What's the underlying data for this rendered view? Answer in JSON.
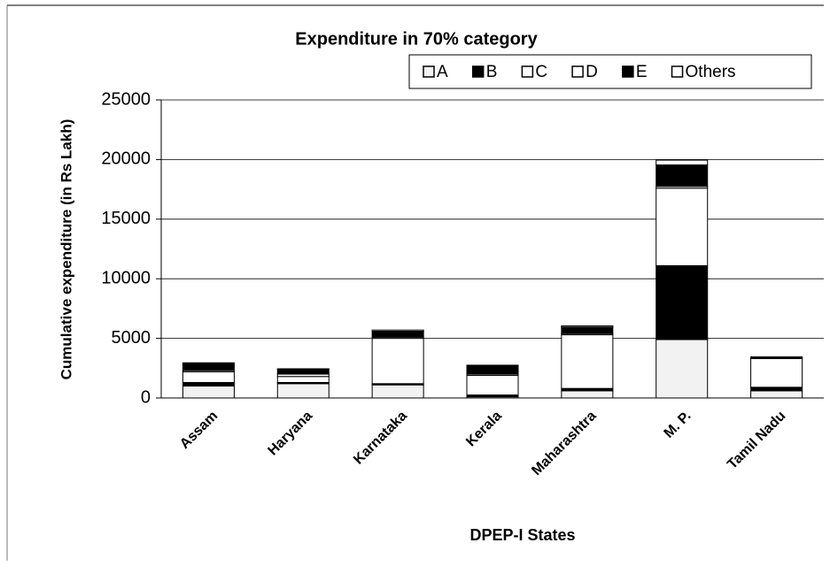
{
  "chart_data": {
    "type": "bar",
    "stacked": true,
    "title": "Expenditure in 70% category",
    "x_label": "DPEP-I States",
    "y_label": "Cumulative expenditure (in Rs Lakh)",
    "categories": [
      "Assam",
      "Haryana",
      "Karnataka",
      "Kerala",
      "Maharashtra",
      "M. P.",
      "Tamil Nadu"
    ],
    "series": [
      {
        "name": "A",
        "color": "#f2f2f2",
        "values": [
          1000,
          1200,
          1100,
          100,
          600,
          4900,
          600
        ]
      },
      {
        "name": "B",
        "color": "#000000",
        "values": [
          300,
          100,
          100,
          150,
          200,
          6200,
          300
        ]
      },
      {
        "name": "C",
        "color": "#ffffff",
        "values": [
          900,
          500,
          3800,
          1650,
          4500,
          6500,
          2400
        ]
      },
      {
        "name": "D",
        "color": "#ffffff",
        "values": [
          100,
          200,
          100,
          100,
          100,
          150,
          50
        ]
      },
      {
        "name": "E",
        "color": "#000000",
        "values": [
          600,
          400,
          500,
          700,
          550,
          1800,
          50
        ]
      },
      {
        "name": "Others",
        "color": "#ffffff",
        "values": [
          50,
          50,
          100,
          50,
          100,
          400,
          50
        ]
      }
    ],
    "ylim": [
      0,
      25000
    ],
    "yticks": [
      0,
      5000,
      10000,
      15000,
      20000,
      25000
    ],
    "grid": true,
    "legend": "top-right"
  }
}
